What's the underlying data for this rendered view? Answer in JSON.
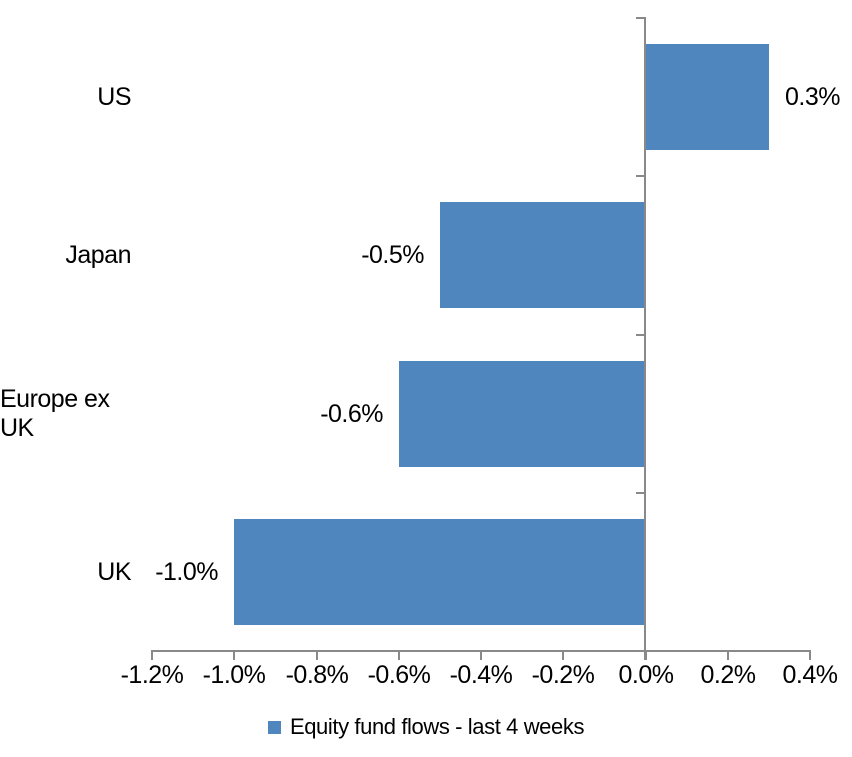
{
  "chart_data": {
    "type": "bar",
    "orientation": "horizontal",
    "title": "",
    "xlabel": "",
    "ylabel": "",
    "categories": [
      "US",
      "Japan",
      "Europe ex UK",
      "UK"
    ],
    "values": [
      0.3,
      -0.5,
      -0.6,
      -1.0
    ],
    "labels": [
      "0.3%",
      "-0.5%",
      "-0.6%",
      "-1.0%"
    ],
    "xlim": [
      -1.2,
      0.4
    ],
    "x_tick_values": [
      -1.2,
      -1.0,
      -0.8,
      -0.6,
      -0.4,
      -0.2,
      0.0,
      0.2,
      0.4
    ],
    "x_ticks": [
      "-1.2%",
      "-1.0%",
      "-0.8%",
      "-0.6%",
      "-0.4%",
      "-0.2%",
      "0.0%",
      "0.2%",
      "0.4%"
    ],
    "grid": false,
    "legend_position": "bottom",
    "legend": [
      {
        "label": "Equity fund flows - last 4 weeks",
        "color": "#4E86BD"
      }
    ],
    "bar_color": "#4E86BD",
    "axis_color": "#898989"
  }
}
